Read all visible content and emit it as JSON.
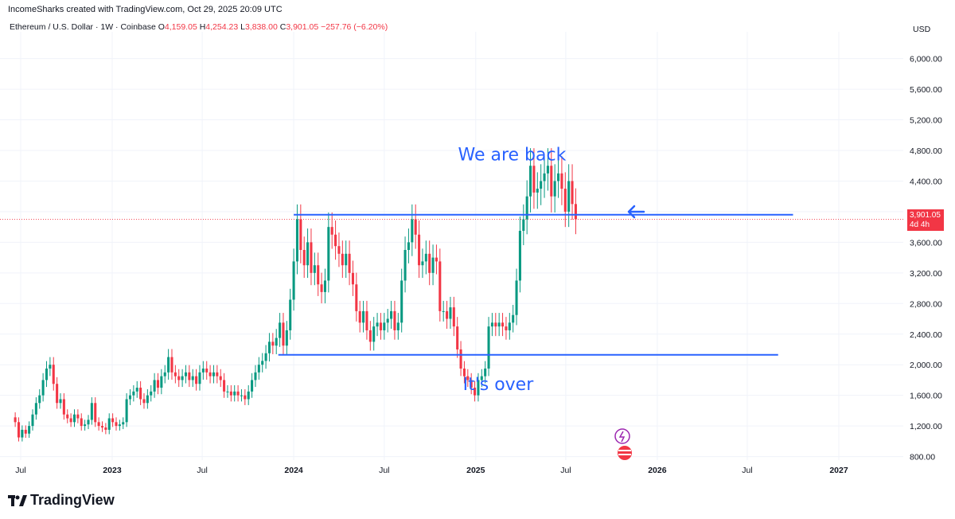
{
  "header": {
    "credit": "IncomeSharks created with TradingView.com, Oct 29, 2025 20:09 UTC"
  },
  "symbol": {
    "name": "Ethereum / U.S. Dollar · 1W · Coinbase",
    "o_label": "O",
    "o": "4,159.05",
    "h_label": "H",
    "h": "4,254.23",
    "l_label": "L",
    "l": "3,838.00",
    "c_label": "C",
    "c": "3,901.05",
    "change": "−257.76 (−6.20%)"
  },
  "price_tag": {
    "price": "3,901.05",
    "countdown": "4d 4h"
  },
  "logo": {
    "text": "TradingView"
  },
  "colors": {
    "up": "#089981",
    "down": "#f23645",
    "line": "#2962ff",
    "text": "#131722"
  },
  "chart_data": {
    "type": "candlestick",
    "currency": "USD",
    "ylim": [
      650,
      6350
    ],
    "y_ticks": [
      "800.00",
      "1,200.00",
      "1,600.00",
      "2,000.00",
      "2,400.00",
      "2,800.00",
      "3,200.00",
      "3,600.00",
      "4,000.00",
      "4,400.00",
      "4,800.00",
      "5,200.00",
      "5,600.00",
      "6,000.00"
    ],
    "y_tick_values": [
      800,
      1200,
      1600,
      2000,
      2400,
      2800,
      3200,
      3600,
      4000,
      4400,
      4800,
      5200,
      5600,
      6000
    ],
    "x_ticks": [
      {
        "label": "Jul",
        "date": "2022-07-01",
        "bold": false
      },
      {
        "label": "2023",
        "date": "2023-01-01",
        "bold": true
      },
      {
        "label": "Jul",
        "date": "2023-07-01",
        "bold": false
      },
      {
        "label": "2024",
        "date": "2024-01-01",
        "bold": true
      },
      {
        "label": "Jul",
        "date": "2024-07-01",
        "bold": false
      },
      {
        "label": "2025",
        "date": "2025-01-01",
        "bold": true
      },
      {
        "label": "Jul",
        "date": "2025-07-01",
        "bold": false
      },
      {
        "label": "2026",
        "date": "2026-01-01",
        "bold": true
      },
      {
        "label": "Jul",
        "date": "2026-07-01",
        "bold": false
      },
      {
        "label": "2027",
        "date": "2027-01-01",
        "bold": true
      }
    ],
    "levels": [
      {
        "name": "resistance",
        "value": 3960,
        "from": "2024-01-01",
        "to": "2026-10-01"
      },
      {
        "name": "support",
        "value": 2130,
        "from": "2023-12-01",
        "to": "2026-09-01"
      }
    ],
    "annotations": [
      {
        "text": "We are back",
        "date": "2025-03-15",
        "value": 4670
      },
      {
        "text": "It's over",
        "date": "2025-02-15",
        "value": 1670
      }
    ],
    "last_price": 3901.05,
    "candles_weekly_from": "2022-06-20",
    "closes": [
      1250,
      1050,
      1150,
      1100,
      1200,
      1350,
      1500,
      1600,
      1800,
      1950,
      2000,
      1750,
      1500,
      1550,
      1350,
      1300,
      1250,
      1350,
      1300,
      1200,
      1220,
      1280,
      1500,
      1250,
      1200,
      1180,
      1150,
      1300,
      1250,
      1200,
      1220,
      1250,
      1550,
      1600,
      1650,
      1700,
      1550,
      1500,
      1600,
      1650,
      1800,
      1700,
      1850,
      1900,
      2100,
      1900,
      1850,
      1800,
      1850,
      1900,
      1800,
      1850,
      1750,
      1900,
      1950,
      1900,
      1850,
      1900,
      1850,
      1800,
      1650,
      1650,
      1600,
      1650,
      1600,
      1600,
      1550,
      1650,
      1800,
      1900,
      2000,
      2050,
      2150,
      2300,
      2250,
      2350,
      2550,
      2250,
      2450,
      2850,
      3350,
      3900,
      3500,
      3300,
      3600,
      3200,
      3300,
      3050,
      2950,
      3100,
      3800,
      3700,
      3550,
      3450,
      3300,
      3450,
      3200,
      3050,
      2700,
      2550,
      2700,
      2450,
      2300,
      2500,
      2550,
      2450,
      2550,
      2600,
      2700,
      2450,
      2550,
      3100,
      3500,
      3600,
      3900,
      3700,
      3300,
      3350,
      3450,
      3200,
      3400,
      3350,
      2700,
      2700,
      2600,
      2750,
      2500,
      2200,
      1950,
      1850,
      1800,
      1700,
      1600,
      1800,
      1850,
      1950,
      2500,
      2550,
      2500,
      2550,
      2500,
      2450,
      2550,
      2650,
      3100,
      3750,
      3900,
      4200,
      4600,
      4250,
      4300,
      4400,
      4500,
      4600,
      4200,
      4400,
      4500,
      4300,
      4000,
      4400,
      4100,
      3901
    ]
  }
}
